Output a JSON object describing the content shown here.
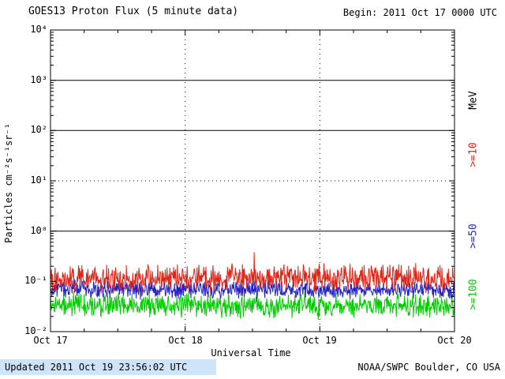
{
  "header": {
    "title": "GOES13 Proton Flux (5 minute data)",
    "begin_label": "Begin: 2011 Oct 17 0000 UTC"
  },
  "footer": {
    "updated": "Updated 2011 Oct 19 23:56:02 UTC",
    "credit": "NOAA/SWPC Boulder, CO USA"
  },
  "chart_data": {
    "type": "line",
    "title": "GOES13 Proton Flux (5 minute data)",
    "subtitle": "Begin: 2011 Oct 17 0000 UTC",
    "xlabel": "Universal Time",
    "ylabel": "Particles cm⁻²s⁻¹sr⁻¹",
    "right_axis_label": "MeV",
    "y_scale": "log",
    "ylim": [
      0.01,
      10000
    ],
    "x_range_days": 3,
    "sample_interval_minutes": 5,
    "points_per_series": 864,
    "x_ticks": [
      "Oct 17",
      "Oct 18",
      "Oct 19",
      "Oct 20"
    ],
    "y_ticks": [
      {
        "label": "10⁴",
        "value": 10000
      },
      {
        "label": "10³",
        "value": 1000
      },
      {
        "label": "10²",
        "value": 100
      },
      {
        "label": "10¹",
        "value": 10
      },
      {
        "label": "10⁰",
        "value": 1
      },
      {
        "label": "10⁻¹",
        "value": 0.1
      },
      {
        "label": "10⁻²",
        "value": 0.01
      }
    ],
    "grid": {
      "solid_hlines": [
        1000,
        100,
        1
      ],
      "dashed_hlines": [
        10
      ],
      "dashed_vlines_day_index": [
        1,
        2
      ],
      "legend_position": "right-rotated"
    },
    "series": [
      {
        "name": "Protons >=100 MeV",
        "label": ">=100",
        "color": "#00cc00",
        "approx_mean_flux": 0.033,
        "approx_min_flux": 0.016,
        "approx_max_flux": 0.06,
        "log_mean": -1.48,
        "log_amp": 0.17,
        "spike_prob": 0.04,
        "spike_mag": 0.28,
        "log_min": -1.8,
        "log_max": -1.2,
        "seed": 303
      },
      {
        "name": "Protons >=50 MeV",
        "label": ">=50",
        "color": "#2222c4",
        "approx_mean_flux": 0.07,
        "approx_min_flux": 0.045,
        "approx_max_flux": 0.13,
        "log_mean": -1.16,
        "log_amp": 0.13,
        "spike_prob": 0.03,
        "spike_mag": 0.25,
        "log_min": -1.4,
        "log_max": -0.86,
        "seed": 202
      },
      {
        "name": "Protons >=10 MeV",
        "label": ">=10",
        "color": "#e02417",
        "approx_mean_flux": 0.115,
        "approx_min_flux": 0.06,
        "approx_max_flux": 0.38,
        "log_mean": -0.94,
        "log_amp": 0.2,
        "spike_prob": 0.05,
        "spike_mag": 0.5,
        "log_min": -1.24,
        "log_max": -0.42,
        "seed": 101
      }
    ]
  }
}
